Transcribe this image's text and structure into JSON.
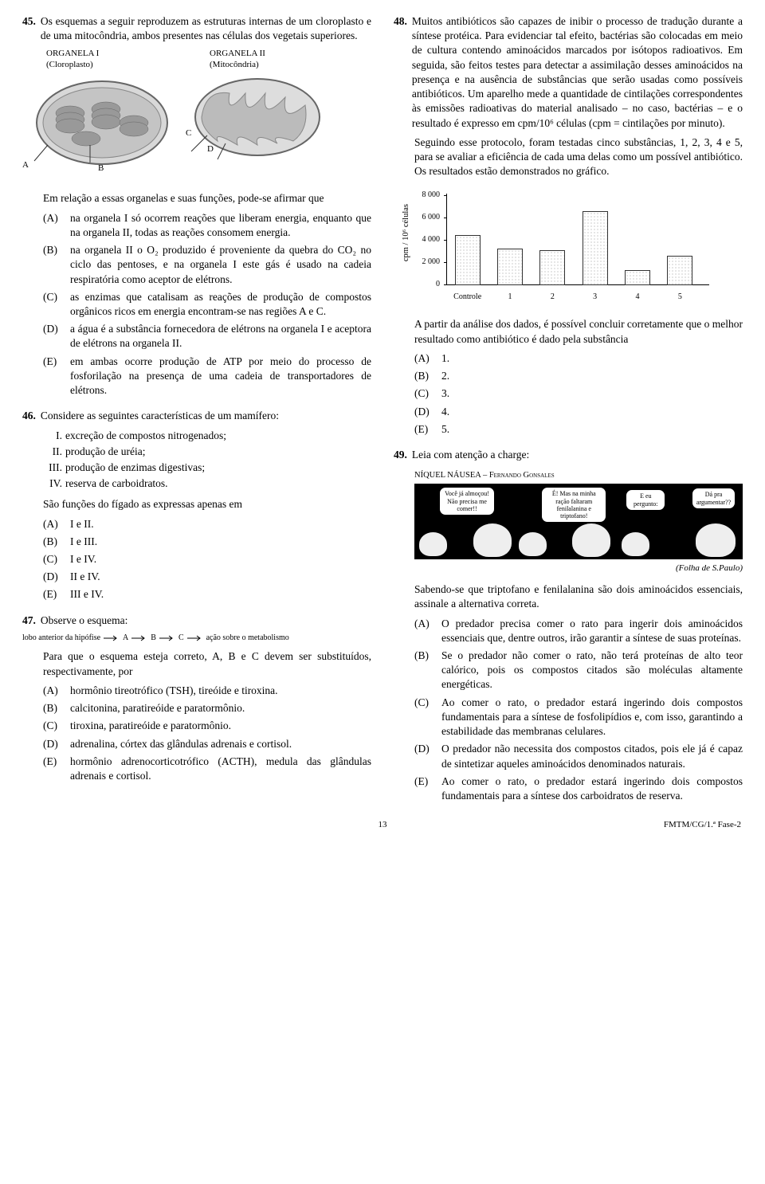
{
  "q45": {
    "num": "45.",
    "text": "Os esquemas a seguir reproduzem as estruturas internas de um cloroplasto e de uma mitocôndria, ambos presentes nas células dos vegetais superiores.",
    "org1_label": "ORGANELA I",
    "org1_sub": "(Cloroplasto)",
    "org2_label": "ORGANELA II",
    "org2_sub": "(Mitocôndria)",
    "a": "A",
    "b": "B",
    "c": "C",
    "d": "D",
    "lead": "Em relação a essas organelas e suas funções, pode-se afirmar que",
    "optA": "na organela I só ocorrem reações que liberam energia, enquanto que na organela II, todas as reações consomem energia.",
    "optB": "na organela II o O₂ produzido é proveniente da quebra do CO₂ no ciclo das pentoses, e na organela I este gás é usado na cadeia respiratória como aceptor de elétrons.",
    "optC": "as enzimas que catalisam as reações de produção de compostos orgânicos ricos em energia encontram-se nas regiões A e C.",
    "optD": "a água é a substância fornecedora de elétrons na organela I e aceptora de elétrons na organela II.",
    "optE": "em ambas ocorre produção de ATP por meio do processo de fosforilação na presença de uma cadeia de transportadores de elétrons."
  },
  "q46": {
    "num": "46.",
    "text": "Considere as seguintes características de um mamífero:",
    "i1n": "I.",
    "i1": "excreção de compostos nitrogenados;",
    "i2n": "II.",
    "i2": "produção de uréia;",
    "i3n": "III.",
    "i3": "produção de enzimas digestivas;",
    "i4n": "IV.",
    "i4": "reserva de carboidratos.",
    "lead": "São funções do fígado as expressas apenas em",
    "optA": "I e II.",
    "optB": "I e III.",
    "optC": "I e IV.",
    "optD": "II e IV.",
    "optE": "III e IV."
  },
  "q47": {
    "num": "47.",
    "text": "Observe o esquema:",
    "scheme_left": "lobo anterior da hipófise",
    "scheme_a": "A",
    "scheme_b": "B",
    "scheme_c": "C",
    "scheme_right": "ação sobre o metabolismo",
    "lead": "Para que o esquema esteja correto, A, B e C devem ser substituídos, respectivamente, por",
    "optA": "hormônio tireotrófico (TSH), tireóide e tiroxina.",
    "optB": "calcitonina, paratireóide e paratormônio.",
    "optC": "tiroxina, paratireóide e paratormônio.",
    "optD": "adrenalina, córtex das glândulas adrenais e cortisol.",
    "optE": "hormônio adrenocorticotrófico (ACTH), medula das glândulas adrenais e cortisol."
  },
  "q48": {
    "num": "48.",
    "text": "Muitos antibióticos são capazes de inibir o processo de tradução durante a síntese protéica. Para evidenciar tal efeito, bactérias são colocadas em meio de cultura contendo aminoácidos marcados por isótopos radioativos. Em seguida, são feitos testes para detectar a assimilação desses aminoácidos na presença e na ausência de substâncias que serão usadas como possíveis antibióticos. Um aparelho mede a quantidade de cintilações correspondentes às emissões radioativas do material analisado – no caso, bactérias – e o resultado é expresso em cpm/10⁶ células (cpm = cintilações por minuto).",
    "para2": "Seguindo esse protocolo, foram testadas cinco substâncias, 1, 2, 3, 4 e 5, para se avaliar a eficiência de cada uma delas como um possível antibiótico. Os resultados estão demonstrados no gráfico.",
    "ylabel": "cpm / 10⁶ células",
    "yticks": [
      "0",
      "2 000",
      "4 000",
      "6 000",
      "8 000"
    ],
    "xticks": [
      "Controle",
      "1",
      "2",
      "3",
      "4",
      "5"
    ],
    "bars": [
      4500,
      3300,
      3200,
      6700,
      1400,
      2700
    ],
    "ymax": 8000,
    "lead": "A partir da análise dos dados, é possível concluir corretamente que o melhor resultado como antibiótico é dado pela substância",
    "optA": "1.",
    "optB": "2.",
    "optC": "3.",
    "optD": "4.",
    "optE": "5."
  },
  "q49": {
    "num": "49.",
    "text": "Leia com atenção a charge:",
    "credit": "NÍQUEL NÁUSEA – Fernando Gonsales",
    "b1": "Você já almoçou! Não precisa me comer!!",
    "b2": "É! Mas na minha ração faltaram fenilalanina e triptofano!",
    "b3a": "E eu pergunto:",
    "b3b": "Dá pra argumentar??",
    "source": "(Folha de S.Paulo)",
    "lead": "Sabendo-se que triptofano e fenilalanina são dois aminoácidos essenciais, assinale a alternativa correta.",
    "optA": "O predador precisa comer o rato para ingerir dois aminoácidos essenciais que, dentre outros, irão garantir a síntese de suas proteínas.",
    "optB": "Se o predador não comer o rato, não terá proteínas de alto teor calórico, pois os compostos citados são moléculas altamente energéticas.",
    "optC": "Ao comer o rato, o predador estará ingerindo dois compostos fundamentais para a síntese de fosfolipídios e, com isso, garantindo a estabilidade das membranas celulares.",
    "optD": "O predador não necessita dos compostos citados, pois ele já é capaz de sintetizar aqueles aminoácidos denominados naturais.",
    "optE": "Ao comer o rato, o predador estará ingerindo dois compostos fundamentais para a síntese dos carboidratos de reserva."
  },
  "labels": {
    "A": "(A)",
    "B": "(B)",
    "C": "(C)",
    "D": "(D)",
    "E": "(E)"
  },
  "footer": {
    "page": "13",
    "right": "FMTM/CG/1.ª Fase-2"
  }
}
